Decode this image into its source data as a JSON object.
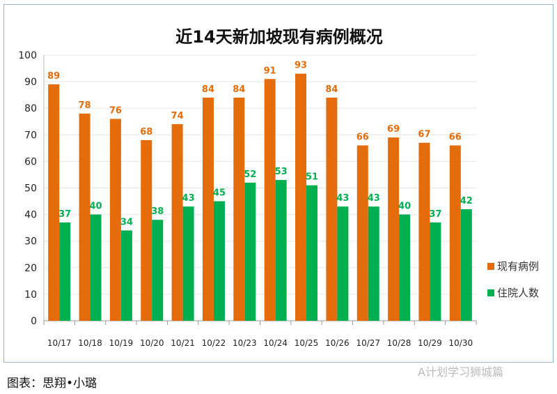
{
  "chart_data": {
    "type": "bar",
    "title": "近14天新加坡现有病例概况",
    "categories": [
      "10/17",
      "10/18",
      "10/19",
      "10/20",
      "10/21",
      "10/22",
      "10/23",
      "10/24",
      "10/25",
      "10/26",
      "10/27",
      "10/28",
      "10/29",
      "10/30"
    ],
    "series": [
      {
        "name": "现有病例",
        "color": "#E46C0A",
        "values": [
          89,
          78,
          76,
          68,
          74,
          84,
          84,
          91,
          93,
          84,
          66,
          69,
          67,
          66
        ]
      },
      {
        "name": "住院人数",
        "color": "#00B050",
        "values": [
          37,
          40,
          34,
          38,
          43,
          45,
          52,
          53,
          51,
          43,
          43,
          40,
          37,
          42
        ]
      }
    ],
    "ylim": [
      0,
      100
    ],
    "yticks": [
      0,
      10,
      20,
      30,
      40,
      50,
      60,
      70,
      80,
      90,
      100
    ],
    "grid": true,
    "legend": "right"
  },
  "footer": {
    "credit": "图表：思翔•小璐",
    "watermark": "A计划学习狮城篇"
  }
}
